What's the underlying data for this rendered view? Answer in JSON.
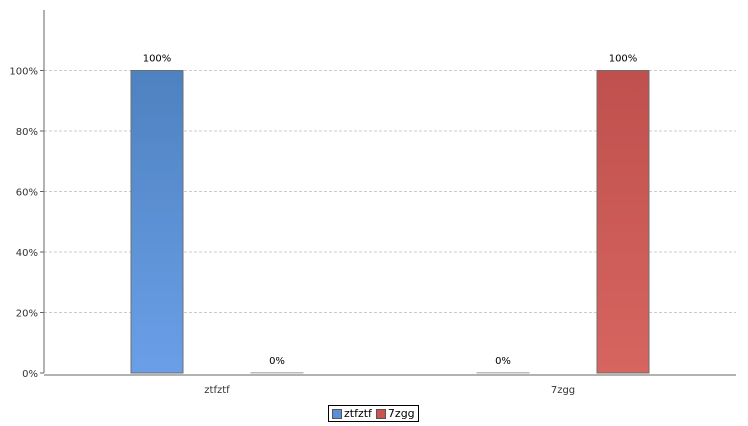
{
  "chart_data": {
    "type": "bar",
    "categories": [
      "ztfztf",
      "7zgg"
    ],
    "series": [
      {
        "name": "ztfztf",
        "values": [
          100,
          0
        ],
        "labels": [
          "100%",
          "0%"
        ],
        "color": "#5a8fd8"
      },
      {
        "name": "7zgg",
        "values": [
          0,
          100
        ],
        "labels": [
          "0%",
          "100%"
        ],
        "color": "#cc5450"
      }
    ],
    "ylim": [
      0,
      120
    ],
    "yticks": [
      {
        "value": 0,
        "label": "0%"
      },
      {
        "value": 20,
        "label": "20%"
      },
      {
        "value": 40,
        "label": "40%"
      },
      {
        "value": 60,
        "label": "60%"
      },
      {
        "value": 80,
        "label": "80%"
      },
      {
        "value": 100,
        "label": "100%"
      }
    ],
    "grid": true,
    "legend_position": "bottom-center"
  }
}
